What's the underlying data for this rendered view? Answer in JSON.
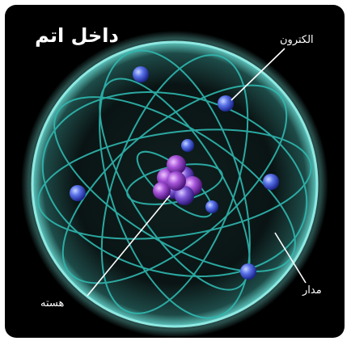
{
  "title": "داخل اتم",
  "labels": {
    "electron": "الکترون",
    "orbit": "مدار",
    "nucleus": "هسته"
  },
  "colors": {
    "background": "#000000",
    "orbit": "#2fb8b0",
    "sphere_edge": "#8fe8e2",
    "electron": "#4a5fd8",
    "nucleus": "#9a4ad0"
  }
}
